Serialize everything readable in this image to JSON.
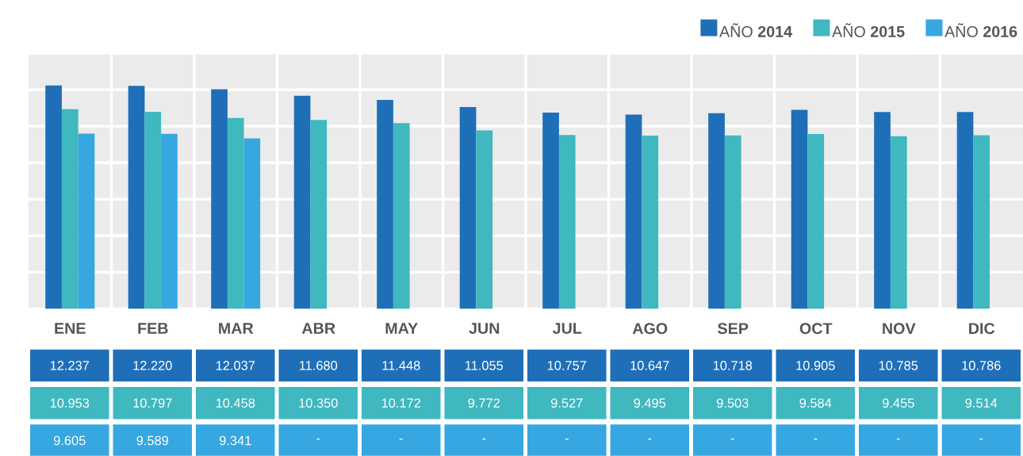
{
  "chart_data": {
    "type": "bar",
    "categories": [
      "ENE",
      "FEB",
      "MAR",
      "ABR",
      "MAY",
      "JUN",
      "JUL",
      "AGO",
      "SEP",
      "OCT",
      "NOV",
      "DIC"
    ],
    "series": [
      {
        "name": "AÑO **2014**",
        "color": "#1f6fb8",
        "values": [
          12237,
          12220,
          12037,
          11680,
          11448,
          11055,
          10757,
          10647,
          10718,
          10905,
          10785,
          10786
        ],
        "value_labels": [
          "12.237",
          "12.220",
          "12.037",
          "11.680",
          "11.448",
          "11.055",
          "10.757",
          "10.647",
          "10.718",
          "10.905",
          "10.785",
          "10.786"
        ]
      },
      {
        "name": "AÑO **2015**",
        "color": "#3fb8c0",
        "values": [
          10953,
          10797,
          10458,
          10350,
          10172,
          9772,
          9527,
          9495,
          9503,
          9584,
          9455,
          9514
        ],
        "value_labels": [
          "10.953",
          "10.797",
          "10.458",
          "10.350",
          "10.172",
          "9.772",
          "9.527",
          "9.495",
          "9.503",
          "9.584",
          "9.455",
          "9.514"
        ]
      },
      {
        "name": "AÑO **2016**",
        "color": "#36a7e0",
        "values": [
          9605,
          9589,
          9341,
          null,
          null,
          null,
          null,
          null,
          null,
          null,
          null,
          null
        ],
        "value_labels": [
          "9.605",
          "9.589",
          "9.341",
          "-",
          "-",
          "-",
          "-",
          "-",
          "-",
          "-",
          "-",
          "-"
        ]
      }
    ],
    "tick_labels": "x",
    "grid": "y",
    "legend": "top right"
  }
}
